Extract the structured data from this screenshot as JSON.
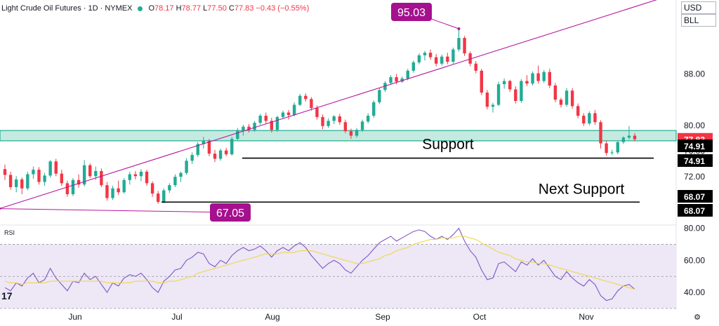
{
  "header": {
    "symbol": "Light Crude Oil Futures · 1D · NYMEX",
    "o_key": "O",
    "o": "78.17",
    "h_key": "H",
    "h": "78.77",
    "l_key": "L",
    "l": "77.50",
    "c_key": "C",
    "c": "77.83",
    "change": "−0.43 (−0.55%)"
  },
  "currency": "USD",
  "unit": "BLL",
  "rsi_label": "RSI",
  "logo_text": "17",
  "settings_icon": "⚙",
  "colors": {
    "up": "#22ab94",
    "down": "#f23645",
    "zone_fill": "#b2e3d6",
    "zone_border": "#22ab94",
    "trendline": "#b5179e",
    "label_bg": "#a5108e",
    "rsi_line": "#7e57c2",
    "rsi_ma": "#f0d74a",
    "rsi_band": "#ede7f6"
  },
  "chart_data": [
    {
      "type": "candlestick",
      "x_labels": [
        "Jun",
        "Jul",
        "Aug",
        "Sep",
        "Oct",
        "Nov"
      ],
      "ylim": [
        64.5,
        99.5
      ],
      "y_ticks": [
        {
          "value": 88.0,
          "label": "88.00"
        },
        {
          "value": 80.0,
          "label": "80.00"
        },
        {
          "value": 76.0,
          "label": "76.00"
        },
        {
          "value": 72.0,
          "label": "72.00"
        }
      ],
      "last_price": {
        "value": 77.83,
        "label": "77.83"
      },
      "support_zone": {
        "low": 77.6,
        "high": 79.2
      },
      "annotations": [
        {
          "text": "95.03",
          "value": 95.03
        },
        {
          "text": "67.05",
          "value": 67.05
        },
        {
          "text": "Support",
          "value": 74.91
        },
        {
          "text": "Next Support",
          "value": 68.07
        }
      ],
      "levels": [
        {
          "value": 74.91,
          "label": "74.91"
        },
        {
          "value": 74.91,
          "label": "74.91"
        },
        {
          "value": 68.07,
          "label": "68.07"
        },
        {
          "value": 68.07,
          "label": "68.07"
        }
      ],
      "trendline": {
        "from": 67.05,
        "to_date": "after Nov",
        "to": 100.5
      },
      "ohlc": [
        [
          73.2,
          73.9,
          71.5,
          72.3
        ],
        [
          72.3,
          72.8,
          70.0,
          70.4
        ],
        [
          70.4,
          72.1,
          69.6,
          71.6
        ],
        [
          71.6,
          71.9,
          69.3,
          70.2
        ],
        [
          70.2,
          72.8,
          69.9,
          72.4
        ],
        [
          72.4,
          73.6,
          71.7,
          73.1
        ],
        [
          73.1,
          73.5,
          70.8,
          71.2
        ],
        [
          71.2,
          72.6,
          70.6,
          72.2
        ],
        [
          72.2,
          74.6,
          71.9,
          74.4
        ],
        [
          74.4,
          74.8,
          72.1,
          72.5
        ],
        [
          72.5,
          73.1,
          70.6,
          71.0
        ],
        [
          71.0,
          71.4,
          68.9,
          69.3
        ],
        [
          69.3,
          71.8,
          69.0,
          71.5
        ],
        [
          71.5,
          72.4,
          70.3,
          70.8
        ],
        [
          70.8,
          74.6,
          70.5,
          73.8
        ],
        [
          73.8,
          74.1,
          71.8,
          72.1
        ],
        [
          72.1,
          73.6,
          71.5,
          72.9
        ],
        [
          72.9,
          73.3,
          70.4,
          70.7
        ],
        [
          70.7,
          71.2,
          68.3,
          68.7
        ],
        [
          68.7,
          70.6,
          68.4,
          70.2
        ],
        [
          70.2,
          71.4,
          69.2,
          69.6
        ],
        [
          69.6,
          71.8,
          69.4,
          71.5
        ],
        [
          71.5,
          72.8,
          70.8,
          72.4
        ],
        [
          72.4,
          72.9,
          71.6,
          72.1
        ],
        [
          72.1,
          73.2,
          71.3,
          72.8
        ],
        [
          72.8,
          73.1,
          70.6,
          71.0
        ],
        [
          71.0,
          71.3,
          68.9,
          69.4
        ],
        [
          69.4,
          69.8,
          67.8,
          68.1
        ],
        [
          68.1,
          70.2,
          67.9,
          69.9
        ],
        [
          69.9,
          71.0,
          69.5,
          70.7
        ],
        [
          70.7,
          72.4,
          70.4,
          72.0
        ],
        [
          72.0,
          72.8,
          71.2,
          72.6
        ],
        [
          72.6,
          74.9,
          72.3,
          74.5
        ],
        [
          74.5,
          75.8,
          74.0,
          75.4
        ],
        [
          75.4,
          77.4,
          75.1,
          77.1
        ],
        [
          77.1,
          78.2,
          76.4,
          77.6
        ],
        [
          77.6,
          77.9,
          75.2,
          75.6
        ],
        [
          75.6,
          76.2,
          74.3,
          74.8
        ],
        [
          74.8,
          76.4,
          74.5,
          76.1
        ],
        [
          76.1,
          76.5,
          75.2,
          75.5
        ],
        [
          75.5,
          78.2,
          75.3,
          77.9
        ],
        [
          77.9,
          79.6,
          77.6,
          79.2
        ],
        [
          79.2,
          80.1,
          78.4,
          79.8
        ],
        [
          79.8,
          80.2,
          78.9,
          79.3
        ],
        [
          79.3,
          80.7,
          79.0,
          80.4
        ],
        [
          80.4,
          81.8,
          80.1,
          81.5
        ],
        [
          81.5,
          82.0,
          80.3,
          80.7
        ],
        [
          80.7,
          81.2,
          78.9,
          79.3
        ],
        [
          79.3,
          81.5,
          79.0,
          81.3
        ],
        [
          81.3,
          82.3,
          81.0,
          82.0
        ],
        [
          82.0,
          82.4,
          80.9,
          81.6
        ],
        [
          81.6,
          83.6,
          81.4,
          83.2
        ],
        [
          83.2,
          84.9,
          83.0,
          84.6
        ],
        [
          84.6,
          85.0,
          83.7,
          84.1
        ],
        [
          84.1,
          84.4,
          82.3,
          82.7
        ],
        [
          82.7,
          83.1,
          80.9,
          81.3
        ],
        [
          81.3,
          81.7,
          79.4,
          79.9
        ],
        [
          79.9,
          81.1,
          79.6,
          80.7
        ],
        [
          80.7,
          81.6,
          80.2,
          81.4
        ],
        [
          81.4,
          81.8,
          80.1,
          80.5
        ],
        [
          80.5,
          80.9,
          78.8,
          79.1
        ],
        [
          79.1,
          79.5,
          77.9,
          78.4
        ],
        [
          78.4,
          79.6,
          78.1,
          79.3
        ],
        [
          79.3,
          80.9,
          79.0,
          80.6
        ],
        [
          80.6,
          81.9,
          80.3,
          81.5
        ],
        [
          81.5,
          83.9,
          81.2,
          83.6
        ],
        [
          83.6,
          85.8,
          83.3,
          85.5
        ],
        [
          85.5,
          86.9,
          85.2,
          86.6
        ],
        [
          86.6,
          87.8,
          86.3,
          87.5
        ],
        [
          87.5,
          88.0,
          86.4,
          86.8
        ],
        [
          86.8,
          87.6,
          86.6,
          87.3
        ],
        [
          87.3,
          88.8,
          87.0,
          88.5
        ],
        [
          88.5,
          90.1,
          88.2,
          89.8
        ],
        [
          89.8,
          91.2,
          89.5,
          90.9
        ],
        [
          90.9,
          91.6,
          90.1,
          91.3
        ],
        [
          91.3,
          91.8,
          90.2,
          90.6
        ],
        [
          90.6,
          91.1,
          89.2,
          89.6
        ],
        [
          89.6,
          91.0,
          89.3,
          90.7
        ],
        [
          90.7,
          91.3,
          89.5,
          89.9
        ],
        [
          89.9,
          92.1,
          89.6,
          91.8
        ],
        [
          91.8,
          95.03,
          91.5,
          93.6
        ],
        [
          93.6,
          93.9,
          90.8,
          91.2
        ],
        [
          91.2,
          91.5,
          89.2,
          89.6
        ],
        [
          89.6,
          90.0,
          88.1,
          88.5
        ],
        [
          88.5,
          88.8,
          84.7,
          85.1
        ],
        [
          85.1,
          85.5,
          82.5,
          82.9
        ],
        [
          82.9,
          83.5,
          82.0,
          83.2
        ],
        [
          83.2,
          86.8,
          83.0,
          86.4
        ],
        [
          86.4,
          87.3,
          85.7,
          86.9
        ],
        [
          86.9,
          87.1,
          85.2,
          85.6
        ],
        [
          85.6,
          86.1,
          83.4,
          83.8
        ],
        [
          83.8,
          87.2,
          83.5,
          86.9
        ],
        [
          86.9,
          87.8,
          86.1,
          86.5
        ],
        [
          86.5,
          88.4,
          86.2,
          88.1
        ],
        [
          88.1,
          89.3,
          86.5,
          86.9
        ],
        [
          86.9,
          88.6,
          86.6,
          88.3
        ],
        [
          88.3,
          88.8,
          85.8,
          86.2
        ],
        [
          86.2,
          86.6,
          83.6,
          84.0
        ],
        [
          84.0,
          84.3,
          82.8,
          83.2
        ],
        [
          83.2,
          85.8,
          82.9,
          85.4
        ],
        [
          85.4,
          85.8,
          82.6,
          83.0
        ],
        [
          83.0,
          83.4,
          81.1,
          81.5
        ],
        [
          81.5,
          81.9,
          79.9,
          80.3
        ],
        [
          80.3,
          82.2,
          80.0,
          81.9
        ],
        [
          81.9,
          82.4,
          80.1,
          80.5
        ],
        [
          80.5,
          80.8,
          76.4,
          77.2
        ],
        [
          77.2,
          77.6,
          75.3,
          75.7
        ],
        [
          75.7,
          76.2,
          75.4,
          75.8
        ],
        [
          75.8,
          77.6,
          75.5,
          77.4
        ],
        [
          77.4,
          78.3,
          77.1,
          78.1
        ],
        [
          78.1,
          79.9,
          77.8,
          78.4
        ],
        [
          78.4,
          78.8,
          77.5,
          77.83
        ]
      ]
    },
    {
      "type": "line",
      "title": "RSI",
      "ylim": [
        30,
        82
      ],
      "y_ticks": [
        {
          "value": 80,
          "label": "80.00"
        },
        {
          "value": 60,
          "label": "60.00"
        },
        {
          "value": 40,
          "label": "40.00"
        }
      ],
      "band": [
        30,
        70
      ],
      "series": [
        {
          "name": "",
          "values": [
            43,
            41,
            46,
            44,
            49,
            52,
            46,
            48,
            55,
            49,
            45,
            41,
            47,
            46,
            52,
            48,
            50,
            45,
            40,
            46,
            44,
            49,
            51,
            50,
            52,
            48,
            43,
            40,
            47,
            50,
            54,
            55,
            60,
            62,
            65,
            64,
            58,
            56,
            60,
            58,
            63,
            66,
            68,
            66,
            67,
            69,
            66,
            62,
            66,
            68,
            66,
            69,
            71,
            68,
            63,
            59,
            55,
            58,
            60,
            58,
            54,
            52,
            56,
            60,
            63,
            67,
            71,
            73,
            75,
            72,
            74,
            76,
            78,
            79,
            78,
            75,
            73,
            75,
            73,
            76,
            80,
            72,
            66,
            62,
            54,
            48,
            49,
            58,
            59,
            56,
            53,
            59,
            57,
            61,
            57,
            60,
            55,
            50,
            48,
            53,
            49,
            46,
            44,
            48,
            45,
            38,
            35,
            36,
            41,
            44,
            45,
            42
          ]
        },
        {
          "name": "",
          "values": [
            47,
            46,
            46,
            45,
            46,
            46,
            46,
            46,
            47,
            47,
            47,
            47,
            47,
            47,
            47,
            47,
            47,
            47,
            46,
            46,
            46,
            46,
            46,
            47,
            47,
            47,
            47,
            46,
            46,
            47,
            47,
            48,
            49,
            50,
            52,
            53,
            54,
            55,
            56,
            57,
            58,
            59,
            60,
            61,
            62,
            63,
            64,
            64,
            64,
            65,
            65,
            65,
            66,
            66,
            66,
            65,
            64,
            63,
            62,
            61,
            60,
            59,
            58,
            58,
            59,
            60,
            61,
            63,
            64,
            66,
            67,
            68,
            70,
            71,
            72,
            73,
            73,
            74,
            74,
            74,
            75,
            75,
            74,
            73,
            71,
            69,
            67,
            65,
            64,
            63,
            61,
            60,
            59,
            59,
            58,
            58,
            57,
            56,
            55,
            54,
            53,
            52,
            51,
            50,
            49,
            48,
            47,
            46,
            45,
            44,
            43,
            42
          ]
        }
      ]
    }
  ]
}
